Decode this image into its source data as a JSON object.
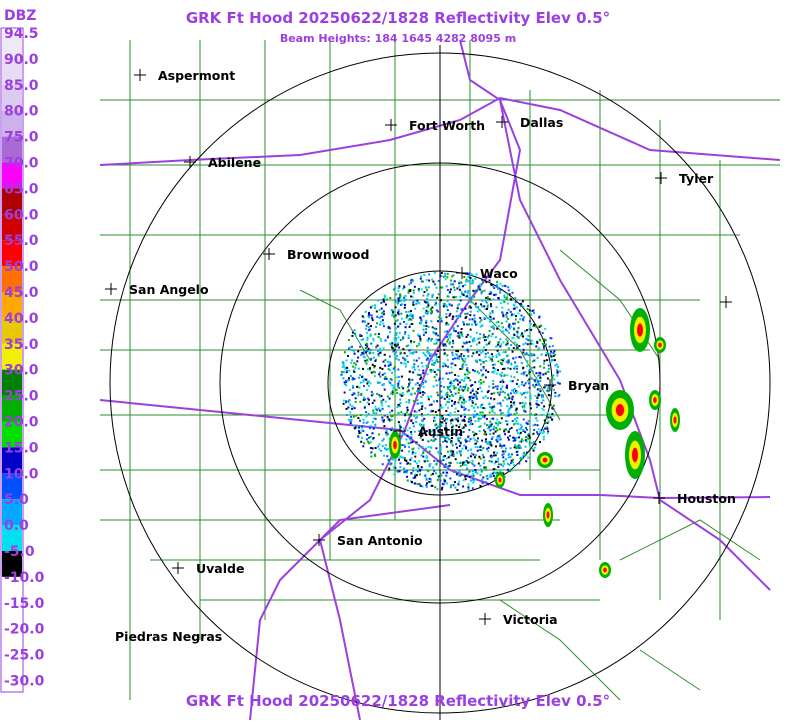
{
  "header": {
    "title": "GRK Ft Hood 20250622/1828 Reflectivity Elev 0.5°",
    "subtitle": "Beam Heights: 184 1645 4282 8095 m"
  },
  "footer": {
    "title": "GRK Ft Hood 20250622/1828 Reflectivity Elev 0.5°"
  },
  "legend": {
    "unit": "DBZ",
    "levels": [
      {
        "label": "94.5",
        "color": "#efe8f6"
      },
      {
        "label": "90.0",
        "color": "#e6dcf4"
      },
      {
        "label": "85.0",
        "color": "#dccbf0"
      },
      {
        "label": "80.0",
        "color": "#ccb2ea"
      },
      {
        "label": "75.0",
        "color": "#a96ad6"
      },
      {
        "label": "70.0",
        "color": "#ff00ff"
      },
      {
        "label": "65.0",
        "color": "#b00000"
      },
      {
        "label": "60.0",
        "color": "#d00000"
      },
      {
        "label": "55.0",
        "color": "#ff0000"
      },
      {
        "label": "50.0",
        "color": "#ff7000"
      },
      {
        "label": "45.0",
        "color": "#ffa800"
      },
      {
        "label": "40.0",
        "color": "#e8c800"
      },
      {
        "label": "35.0",
        "color": "#f0f000"
      },
      {
        "label": "30.0",
        "color": "#008000"
      },
      {
        "label": "25.0",
        "color": "#00b000"
      },
      {
        "label": "20.0",
        "color": "#00e000"
      },
      {
        "label": "15.0",
        "color": "#0000c8"
      },
      {
        "label": "10.0",
        "color": "#0050ff"
      },
      {
        "label": "5.0",
        "color": "#00a8ff"
      },
      {
        "label": "0.0",
        "color": "#00e0f0"
      },
      {
        "label": "-5.0",
        "color": "#000000"
      },
      {
        "label": "-10.0",
        "color": "#ffffff"
      },
      {
        "label": "-15.0",
        "color": "#ffffff"
      },
      {
        "label": "-20.0",
        "color": "#ffffff"
      },
      {
        "label": "-25.0",
        "color": "#ffffff"
      },
      {
        "label": "-30.0",
        "color": "#ffffff"
      }
    ]
  },
  "cities": [
    "Aspermont",
    "Abilene",
    "Fort Worth",
    "Dallas",
    "Tyler",
    "Brownwood",
    "Waco",
    "San Angelo",
    "Bryan",
    "Austin",
    "Houston",
    "San Antonio",
    "Uvalde",
    "Victoria",
    "Piedras Negras"
  ]
}
